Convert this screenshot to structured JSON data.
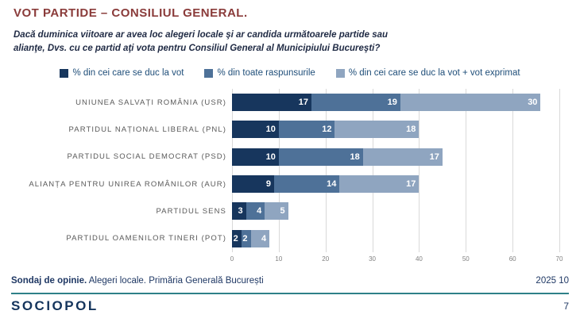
{
  "title": "VOT PARTIDE – CONSILIUL GENERAL.",
  "subtitle": "Dacă duminica viitoare ar avea loc alegeri locale şi ar candida următoarele partide sau alianţe, Dvs. cu ce partid aţi vota pentru Consiliul General al Municipiului Bucureşti?",
  "chart_data": {
    "type": "bar",
    "orientation": "horizontal",
    "stacked": true,
    "grid": "vertical",
    "legend_position": "top",
    "categories": [
      "UNIUNEA SALVAȚI ROMÂNIA (USR)",
      "PARTIDUL NAȚIONAL LIBERAL (PNL)",
      "PARTIDUL SOCIAL DEMOCRAT (PSD)",
      "ALIANȚA PENTRU UNIREA ROMÂNILOR (AUR)",
      "PARTIDUL SENS",
      "PARTIDUL OAMENILOR TINERI (POT)"
    ],
    "series": [
      {
        "name": "% din cei care se duc la vot",
        "color": "#17365D",
        "values": [
          17,
          10,
          10,
          9,
          3,
          2
        ]
      },
      {
        "name": "% din toate raspunsurile",
        "color": "#4E7198",
        "values": [
          19,
          12,
          18,
          14,
          4,
          2
        ]
      },
      {
        "name": "% din cei care se duc la vot + vot exprimat",
        "color": "#8FA5C0",
        "values": [
          30,
          18,
          17,
          17,
          5,
          4
        ]
      }
    ],
    "xlim": [
      0,
      70
    ],
    "xticks": [
      0,
      10,
      20,
      30,
      40,
      50,
      60,
      70
    ],
    "value_label_color": "#FFFFFF"
  },
  "colors": {
    "title": "#8A3B3A",
    "subtitle": "#1F2A44",
    "legend_text": "#1F4E79",
    "category_label": "#595959",
    "gridline": "#D9D9D9",
    "footer_text": "#1F3864",
    "footer_rule": "#2E8088",
    "logo": "#14345C"
  },
  "footer": {
    "source_bold": "Sondaj de opinie.",
    "source_rest": " Alegeri locale. Primăria Generală București",
    "date": "2025 10",
    "logo": "SOCIOPOL",
    "page": "7"
  }
}
